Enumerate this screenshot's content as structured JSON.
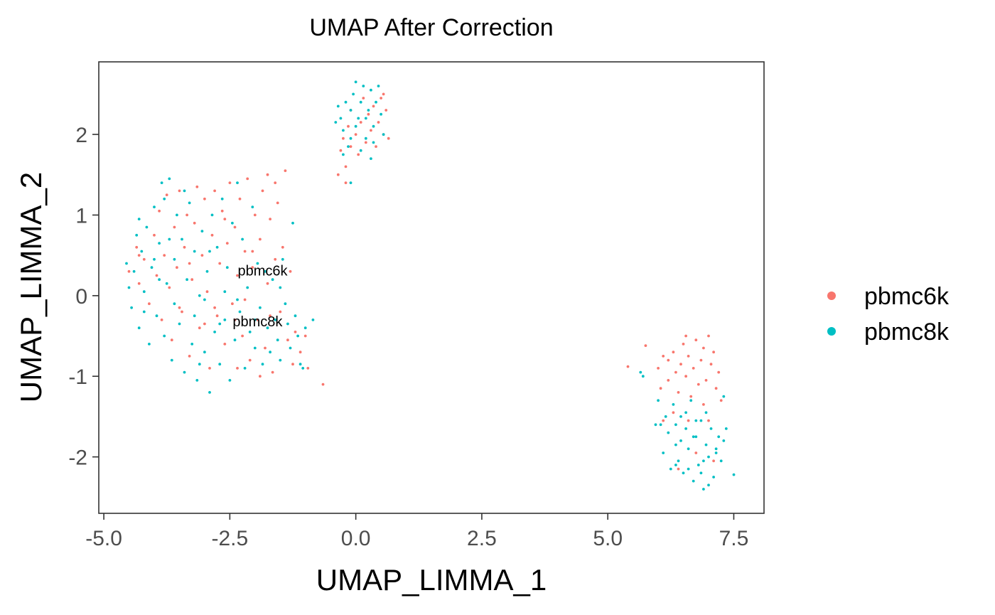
{
  "chart_data": {
    "type": "scatter",
    "title": "UMAP After Correction",
    "xlabel": "UMAP_LIMMA_1",
    "ylabel": "UMAP_LIMMA_2",
    "xlim": [
      -5.1,
      8.1
    ],
    "ylim": [
      -2.7,
      2.9
    ],
    "xticks": [
      -5.0,
      -2.5,
      0.0,
      2.5,
      5.0,
      7.5
    ],
    "xtick_labels": [
      "-5.0",
      "-2.5",
      "0.0",
      "2.5",
      "5.0",
      "7.5"
    ],
    "yticks": [
      -2,
      -1,
      0,
      1,
      2
    ],
    "ytick_labels": [
      "-2",
      "-1",
      "0",
      "1",
      "2"
    ],
    "grid": false,
    "legend_position": "right",
    "legend": [
      {
        "label": "pbmc6k",
        "color": "#F8766D"
      },
      {
        "label": "pbmc8k",
        "color": "#00BFC4"
      }
    ],
    "annotations": [
      {
        "text": "pbmc6k",
        "x": -1.85,
        "y": 0.25
      },
      {
        "text": "pbmc8k",
        "x": -1.95,
        "y": -0.38
      }
    ],
    "series": [
      {
        "name": "pbmc6k",
        "color": "#F8766D",
        "points": [
          [
            -4.5,
            0.3
          ],
          [
            -4.35,
            0.6
          ],
          [
            -4.3,
            0.15
          ],
          [
            -4.2,
            0.45
          ],
          [
            -4.1,
            -0.1
          ],
          [
            -4.0,
            0.75
          ],
          [
            -3.95,
            0.25
          ],
          [
            -3.9,
            1.05
          ],
          [
            -3.85,
            -0.3
          ],
          [
            -3.8,
            0.5
          ],
          [
            -3.75,
            1.25
          ],
          [
            -3.7,
            0.1
          ],
          [
            -3.65,
            -0.55
          ],
          [
            -3.6,
            0.85
          ],
          [
            -3.55,
            0.35
          ],
          [
            -3.5,
            1.3
          ],
          [
            -3.45,
            -0.2
          ],
          [
            -3.4,
            0.6
          ],
          [
            -3.35,
            1.0
          ],
          [
            -3.3,
            -0.75
          ],
          [
            -3.25,
            0.2
          ],
          [
            -3.2,
            0.9
          ],
          [
            -3.15,
            1.35
          ],
          [
            -3.1,
            -0.4
          ],
          [
            -3.05,
            0.5
          ],
          [
            -3.0,
            1.2
          ],
          [
            -2.95,
            0.05
          ],
          [
            -2.9,
            -0.9
          ],
          [
            -2.85,
            0.75
          ],
          [
            -2.8,
            1.3
          ],
          [
            -2.75,
            -0.25
          ],
          [
            -2.7,
            0.4
          ],
          [
            -2.65,
            1.05
          ],
          [
            -2.6,
            -0.6
          ],
          [
            -2.55,
            0.65
          ],
          [
            -2.5,
            1.4
          ],
          [
            -2.45,
            -0.1
          ],
          [
            -2.4,
            0.85
          ],
          [
            -2.35,
            0.25
          ],
          [
            -2.3,
            1.2
          ],
          [
            -2.25,
            -0.5
          ],
          [
            -2.2,
            0.55
          ],
          [
            -2.15,
            1.45
          ],
          [
            -2.1,
            -0.8
          ],
          [
            -2.05,
            0.35
          ],
          [
            -2.0,
            1.0
          ],
          [
            -1.95,
            -0.3
          ],
          [
            -1.9,
            0.7
          ],
          [
            -1.85,
            1.3
          ],
          [
            -1.8,
            -0.65
          ],
          [
            -1.75,
            0.15
          ],
          [
            -1.7,
            0.95
          ],
          [
            -1.65,
            -0.95
          ],
          [
            -1.6,
            0.45
          ],
          [
            -1.55,
            1.15
          ],
          [
            -1.5,
            -0.2
          ],
          [
            -1.45,
            0.6
          ],
          [
            -1.4,
            1.55
          ],
          [
            -1.35,
            -0.55
          ],
          [
            -1.3,
            0.3
          ],
          [
            -1.25,
            -0.85
          ],
          [
            -1.2,
            -0.45
          ],
          [
            -1.1,
            -0.7
          ],
          [
            -1.0,
            -0.5
          ],
          [
            -0.95,
            -0.9
          ],
          [
            -0.65,
            -1.1
          ],
          [
            -2.6,
            0.95
          ],
          [
            -3.0,
            -0.35
          ],
          [
            -2.4,
            -0.3
          ],
          [
            -1.7,
            -0.25
          ],
          [
            -2.2,
            -0.05
          ],
          [
            -3.5,
            -0.15
          ],
          [
            -2.8,
            -0.15
          ],
          [
            -1.6,
            1.4
          ],
          [
            -1.75,
            1.5
          ],
          [
            -3.3,
            0.4
          ],
          [
            -2.05,
            0.55
          ],
          [
            -4.3,
            0.5
          ],
          [
            -2.35,
            -0.9
          ],
          [
            -1.9,
            -1.0
          ],
          [
            -0.3,
            1.8
          ],
          [
            -0.25,
            1.95
          ],
          [
            -0.15,
            2.1
          ],
          [
            -0.1,
            2.3
          ],
          [
            0.0,
            2.0
          ],
          [
            0.05,
            1.75
          ],
          [
            0.1,
            2.15
          ],
          [
            0.15,
            2.45
          ],
          [
            0.2,
            1.9
          ],
          [
            0.25,
            2.25
          ],
          [
            0.3,
            2.05
          ],
          [
            0.35,
            2.35
          ],
          [
            0.4,
            1.85
          ],
          [
            0.45,
            2.15
          ],
          [
            0.5,
            2.45
          ],
          [
            0.55,
            2.0
          ],
          [
            0.6,
            2.3
          ],
          [
            0.65,
            1.95
          ],
          [
            -0.2,
            1.6
          ],
          [
            -0.1,
            1.85
          ],
          [
            -0.35,
            1.5
          ],
          [
            -0.2,
            1.4
          ],
          [
            0.55,
            2.5
          ],
          [
            5.4,
            -0.88
          ],
          [
            5.75,
            -0.62
          ],
          [
            6.0,
            -0.9
          ],
          [
            6.05,
            -1.15
          ],
          [
            6.1,
            -0.75
          ],
          [
            6.2,
            -1.05
          ],
          [
            6.3,
            -0.7
          ],
          [
            6.35,
            -0.95
          ],
          [
            6.4,
            -1.2
          ],
          [
            6.45,
            -0.85
          ],
          [
            6.5,
            -0.6
          ],
          [
            6.55,
            -1.0
          ],
          [
            6.6,
            -0.75
          ],
          [
            6.65,
            -1.25
          ],
          [
            6.7,
            -0.9
          ],
          [
            6.75,
            -0.55
          ],
          [
            6.8,
            -1.1
          ],
          [
            6.85,
            -0.8
          ],
          [
            6.9,
            -0.65
          ],
          [
            6.95,
            -1.05
          ],
          [
            7.0,
            -0.5
          ],
          [
            7.05,
            -0.85
          ],
          [
            7.1,
            -0.7
          ],
          [
            7.15,
            -1.15
          ],
          [
            7.2,
            -0.95
          ],
          [
            7.25,
            -1.3
          ],
          [
            6.3,
            -1.45
          ],
          [
            6.6,
            -1.55
          ],
          [
            6.9,
            -1.35
          ],
          [
            7.0,
            -1.55
          ],
          [
            6.1,
            -1.55
          ],
          [
            6.4,
            -2.15
          ],
          [
            6.75,
            -1.95
          ],
          [
            7.1,
            -2.05
          ],
          [
            6.55,
            -0.5
          ],
          [
            6.2,
            -0.8
          ]
        ]
      },
      {
        "name": "pbmc8k",
        "color": "#00BFC4",
        "points": [
          [
            -4.55,
            0.4
          ],
          [
            -4.5,
            0.1
          ],
          [
            -4.45,
            -0.15
          ],
          [
            -4.4,
            0.3
          ],
          [
            -4.35,
            0.75
          ],
          [
            -4.3,
            -0.4
          ],
          [
            -4.25,
            0.55
          ],
          [
            -4.2,
            0.05
          ],
          [
            -4.15,
            0.85
          ],
          [
            -4.1,
            -0.6
          ],
          [
            -4.05,
            0.35
          ],
          [
            -4.0,
            1.1
          ],
          [
            -3.95,
            -0.25
          ],
          [
            -3.9,
            0.65
          ],
          [
            -3.85,
            1.4
          ],
          [
            -3.8,
            -0.5
          ],
          [
            -3.75,
            0.15
          ],
          [
            -3.7,
            1.45
          ],
          [
            -3.65,
            -0.8
          ],
          [
            -3.6,
            0.45
          ],
          [
            -3.55,
            1.0
          ],
          [
            -3.5,
            -0.35
          ],
          [
            -3.45,
            0.7
          ],
          [
            -3.4,
            -0.95
          ],
          [
            -3.35,
            0.2
          ],
          [
            -3.3,
            1.15
          ],
          [
            -3.25,
            -0.6
          ],
          [
            -3.2,
            0.55
          ],
          [
            -3.15,
            -1.05
          ],
          [
            -3.1,
            0.0
          ],
          [
            -3.05,
            0.8
          ],
          [
            -3.0,
            -0.7
          ],
          [
            -2.95,
            0.3
          ],
          [
            -2.9,
            -1.2
          ],
          [
            -2.85,
            1.0
          ],
          [
            -2.8,
            -0.45
          ],
          [
            -2.75,
            0.6
          ],
          [
            -2.7,
            -0.85
          ],
          [
            -2.65,
            1.2
          ],
          [
            -2.6,
            -0.3
          ],
          [
            -2.55,
            0.35
          ],
          [
            -2.5,
            -1.05
          ],
          [
            -2.45,
            0.9
          ],
          [
            -2.4,
            -0.55
          ],
          [
            -2.35,
            1.4
          ],
          [
            -2.3,
            -0.2
          ],
          [
            -2.25,
            0.7
          ],
          [
            -2.2,
            -0.9
          ],
          [
            -2.15,
            0.1
          ],
          [
            -2.1,
            -0.45
          ],
          [
            -2.05,
            1.1
          ],
          [
            -2.0,
            -0.65
          ],
          [
            -1.95,
            0.4
          ],
          [
            -1.9,
            -0.15
          ],
          [
            -1.85,
            -0.85
          ],
          [
            -1.8,
            0.3
          ],
          [
            -1.75,
            -0.4
          ],
          [
            -1.7,
            -0.7
          ],
          [
            -1.65,
            0.2
          ],
          [
            -1.6,
            -0.3
          ],
          [
            -1.55,
            -0.55
          ],
          [
            -1.5,
            -0.8
          ],
          [
            -1.45,
            0.45
          ],
          [
            -1.4,
            -0.1
          ],
          [
            -1.35,
            -0.35
          ],
          [
            -1.3,
            -0.65
          ],
          [
            -1.25,
            0.9
          ],
          [
            -1.2,
            -0.25
          ],
          [
            -1.15,
            -0.5
          ],
          [
            -1.1,
            -0.85
          ],
          [
            -1.05,
            -0.9
          ],
          [
            -1.0,
            -0.4
          ],
          [
            -0.85,
            -0.3
          ],
          [
            -3.9,
            0.2
          ],
          [
            -3.6,
            -0.1
          ],
          [
            -4.2,
            -0.2
          ],
          [
            -3.2,
            -0.25
          ],
          [
            -2.9,
            0.55
          ],
          [
            -2.6,
            0.05
          ],
          [
            -3.7,
            0.7
          ],
          [
            -4.0,
            0.45
          ],
          [
            -3.4,
            1.3
          ],
          [
            -2.35,
            -0.05
          ],
          [
            -1.5,
            0.1
          ],
          [
            -3.1,
            -0.85
          ],
          [
            -2.7,
            -0.35
          ],
          [
            -4.3,
            0.95
          ],
          [
            -3.8,
            1.2
          ],
          [
            -3.0,
            -0.05
          ],
          [
            -2.0,
            -0.3
          ],
          [
            -0.4,
            2.15
          ],
          [
            -0.35,
            2.35
          ],
          [
            -0.3,
            2.2
          ],
          [
            -0.25,
            2.05
          ],
          [
            -0.2,
            2.4
          ],
          [
            -0.15,
            1.85
          ],
          [
            -0.1,
            2.3
          ],
          [
            -0.05,
            2.5
          ],
          [
            0.0,
            2.65
          ],
          [
            0.05,
            2.2
          ],
          [
            0.1,
            2.4
          ],
          [
            0.15,
            2.6
          ],
          [
            0.2,
            1.95
          ],
          [
            0.25,
            2.3
          ],
          [
            0.3,
            2.55
          ],
          [
            0.35,
            2.1
          ],
          [
            0.4,
            2.4
          ],
          [
            0.45,
            2.6
          ],
          [
            0.5,
            2.25
          ],
          [
            0.55,
            2.0
          ],
          [
            -0.1,
            1.95
          ],
          [
            0.1,
            1.8
          ],
          [
            0.3,
            1.7
          ],
          [
            0.0,
            2.1
          ],
          [
            0.2,
            2.2
          ],
          [
            -0.25,
            1.75
          ],
          [
            -0.1,
            1.4
          ],
          [
            0.35,
            1.9
          ],
          [
            5.65,
            -0.95
          ],
          [
            5.7,
            -1.0
          ],
          [
            6.0,
            -1.3
          ],
          [
            6.05,
            -1.6
          ],
          [
            6.1,
            -1.95
          ],
          [
            6.2,
            -1.7
          ],
          [
            6.25,
            -2.15
          ],
          [
            6.3,
            -1.35
          ],
          [
            6.35,
            -1.85
          ],
          [
            6.4,
            -2.05
          ],
          [
            6.45,
            -1.5
          ],
          [
            6.5,
            -2.2
          ],
          [
            6.55,
            -1.65
          ],
          [
            6.6,
            -1.9
          ],
          [
            6.65,
            -1.3
          ],
          [
            6.7,
            -2.3
          ],
          [
            6.75,
            -1.75
          ],
          [
            6.8,
            -2.1
          ],
          [
            6.85,
            -1.55
          ],
          [
            6.9,
            -2.4
          ],
          [
            6.95,
            -1.85
          ],
          [
            7.0,
            -2.0
          ],
          [
            7.05,
            -1.65
          ],
          [
            7.1,
            -2.25
          ],
          [
            7.15,
            -1.9
          ],
          [
            7.2,
            -1.75
          ],
          [
            7.25,
            -2.05
          ],
          [
            7.3,
            -1.8
          ],
          [
            7.35,
            -1.65
          ],
          [
            7.3,
            -1.25
          ],
          [
            7.5,
            -2.22
          ],
          [
            6.55,
            -1.45
          ],
          [
            6.75,
            -1.55
          ],
          [
            6.35,
            -2.1
          ],
          [
            6.85,
            -2.2
          ],
          [
            7.0,
            -2.35
          ],
          [
            6.6,
            -2.15
          ],
          [
            6.15,
            -1.5
          ],
          [
            5.95,
            -1.6
          ],
          [
            6.95,
            -1.45
          ],
          [
            6.45,
            -1.8
          ],
          [
            6.7,
            -1.75
          ],
          [
            7.15,
            -1.95
          ],
          [
            6.9,
            -2.05
          ],
          [
            6.35,
            -1.6
          ]
        ]
      }
    ]
  }
}
